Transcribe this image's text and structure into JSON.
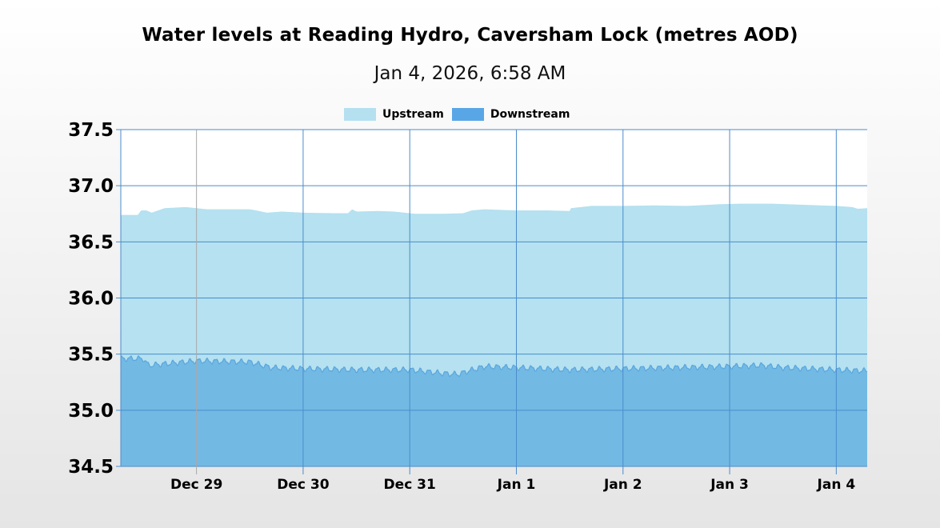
{
  "header": {
    "title": "Water levels at Reading Hydro, Caversham Lock (metres AOD)",
    "subtitle": "Jan 4, 2026, 6:58 AM"
  },
  "legend": [
    {
      "label": "Upstream",
      "color": "#b5e0f0"
    },
    {
      "label": "Downstream",
      "color": "#59a6e6"
    }
  ],
  "colors": {
    "upstream_fill": "#b5e1f0",
    "downstream_fill": "#72bae4",
    "downstream_line": "#5aa5dd",
    "grid": "#4a8ccc",
    "first_vgrid": "#a8a8a8",
    "plot_bg": "#ffffff"
  },
  "chart_data": {
    "type": "area",
    "title": "Water levels at Reading Hydro, Caversham Lock (metres AOD)",
    "subtitle": "Jan 4, 2026, 6:58 AM",
    "xlabel": "",
    "ylabel": "",
    "ylim": [
      34.5,
      37.5
    ],
    "yticks": [
      "37.5",
      "37.0",
      "36.5",
      "36.0",
      "35.5",
      "35.0",
      "34.5"
    ],
    "ytick_values": [
      37.5,
      37.0,
      36.5,
      36.0,
      35.5,
      35.0,
      34.5
    ],
    "xticks": [
      "Dec 29",
      "Dec 30",
      "Dec 31",
      "Jan 1",
      "Jan 2",
      "Jan 3",
      "Jan 4"
    ],
    "xlim_days": [
      -0.71,
      6.29
    ],
    "x_unit": "days since Dec 29 00:00",
    "grid": true,
    "legend_position": "top",
    "series": [
      {
        "name": "Upstream",
        "x": [
          -0.71,
          -0.55,
          -0.52,
          -0.47,
          -0.42,
          -0.3,
          -0.1,
          0.1,
          0.5,
          0.56,
          0.66,
          0.8,
          1.0,
          1.3,
          1.42,
          1.46,
          1.5,
          1.7,
          1.85,
          2.05,
          2.3,
          2.5,
          2.58,
          2.7,
          3.0,
          3.3,
          3.5,
          3.51,
          3.7,
          4.0,
          4.3,
          4.6,
          4.9,
          5.1,
          5.4,
          5.7,
          6.0,
          6.15,
          6.2,
          6.29
        ],
        "values": [
          36.74,
          36.74,
          36.78,
          36.78,
          36.76,
          36.8,
          36.81,
          36.79,
          36.79,
          36.78,
          36.76,
          36.77,
          36.76,
          36.755,
          36.755,
          36.79,
          36.77,
          36.775,
          36.77,
          36.75,
          36.75,
          36.755,
          36.78,
          36.79,
          36.78,
          36.78,
          36.775,
          36.8,
          36.82,
          36.82,
          36.825,
          36.82,
          36.835,
          36.84,
          36.84,
          36.83,
          36.82,
          36.81,
          36.795,
          36.8
        ]
      },
      {
        "name": "Downstream",
        "x": [
          -0.71,
          -0.5,
          -0.45,
          0.0,
          0.5,
          0.7,
          1.0,
          1.5,
          2.0,
          2.3,
          2.45,
          2.55,
          2.7,
          3.0,
          3.5,
          4.0,
          4.5,
          5.0,
          5.3,
          5.5,
          6.0,
          6.29
        ],
        "values": [
          35.46,
          35.46,
          35.4,
          35.44,
          35.43,
          35.38,
          35.37,
          35.36,
          35.36,
          35.33,
          35.32,
          35.35,
          35.39,
          35.38,
          35.36,
          35.37,
          35.38,
          35.39,
          35.4,
          35.38,
          35.36,
          35.35
        ],
        "diurnal_oscillation_amplitude_m": 0.04
      }
    ]
  }
}
